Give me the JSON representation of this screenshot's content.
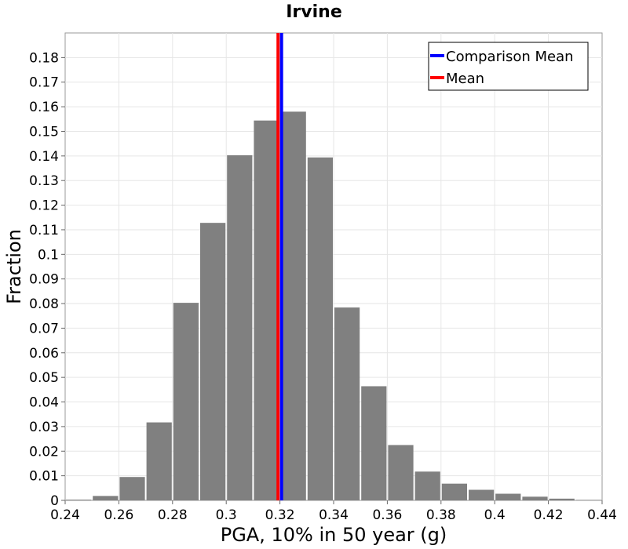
{
  "chart_data": {
    "type": "bar",
    "title": "Irvine",
    "xlabel": "PGA, 10% in 50 year (g)",
    "ylabel": "Fraction",
    "xlim": [
      0.24,
      0.44
    ],
    "ylim": [
      0,
      0.19
    ],
    "xticks": [
      "0.24",
      "0.26",
      "0.28",
      "0.3",
      "0.32",
      "0.34",
      "0.36",
      "0.38",
      "0.4",
      "0.42",
      "0.44"
    ],
    "yticks": [
      "0",
      "0.01",
      "0.02",
      "0.03",
      "0.04",
      "0.05",
      "0.06",
      "0.07",
      "0.08",
      "0.09",
      "0.1",
      "0.11",
      "0.12",
      "0.13",
      "0.14",
      "0.15",
      "0.16",
      "0.17",
      "0.18"
    ],
    "bin_width": 0.01,
    "bins": [
      {
        "x": 0.24,
        "value": 0.0003
      },
      {
        "x": 0.25,
        "value": 0.0018
      },
      {
        "x": 0.26,
        "value": 0.0095
      },
      {
        "x": 0.27,
        "value": 0.0317
      },
      {
        "x": 0.28,
        "value": 0.0803
      },
      {
        "x": 0.29,
        "value": 0.1128
      },
      {
        "x": 0.3,
        "value": 0.1403
      },
      {
        "x": 0.31,
        "value": 0.1544
      },
      {
        "x": 0.32,
        "value": 0.158
      },
      {
        "x": 0.33,
        "value": 0.1394
      },
      {
        "x": 0.34,
        "value": 0.0784
      },
      {
        "x": 0.35,
        "value": 0.0464
      },
      {
        "x": 0.36,
        "value": 0.0225
      },
      {
        "x": 0.37,
        "value": 0.0117
      },
      {
        "x": 0.38,
        "value": 0.0068
      },
      {
        "x": 0.39,
        "value": 0.0043
      },
      {
        "x": 0.4,
        "value": 0.0027
      },
      {
        "x": 0.41,
        "value": 0.0015
      },
      {
        "x": 0.42,
        "value": 0.0007
      },
      {
        "x": 0.43,
        "value": 0.0002
      }
    ],
    "bar_color": "#808080",
    "lines": [
      {
        "name": "Comparison Mean",
        "x": 0.3206,
        "color": "#0000ff"
      },
      {
        "name": "Mean",
        "x": 0.3193,
        "color": "#ff0000"
      }
    ],
    "legend": {
      "position": "top-right",
      "entries": [
        "Comparison Mean",
        "Mean"
      ]
    },
    "grid": true
  }
}
